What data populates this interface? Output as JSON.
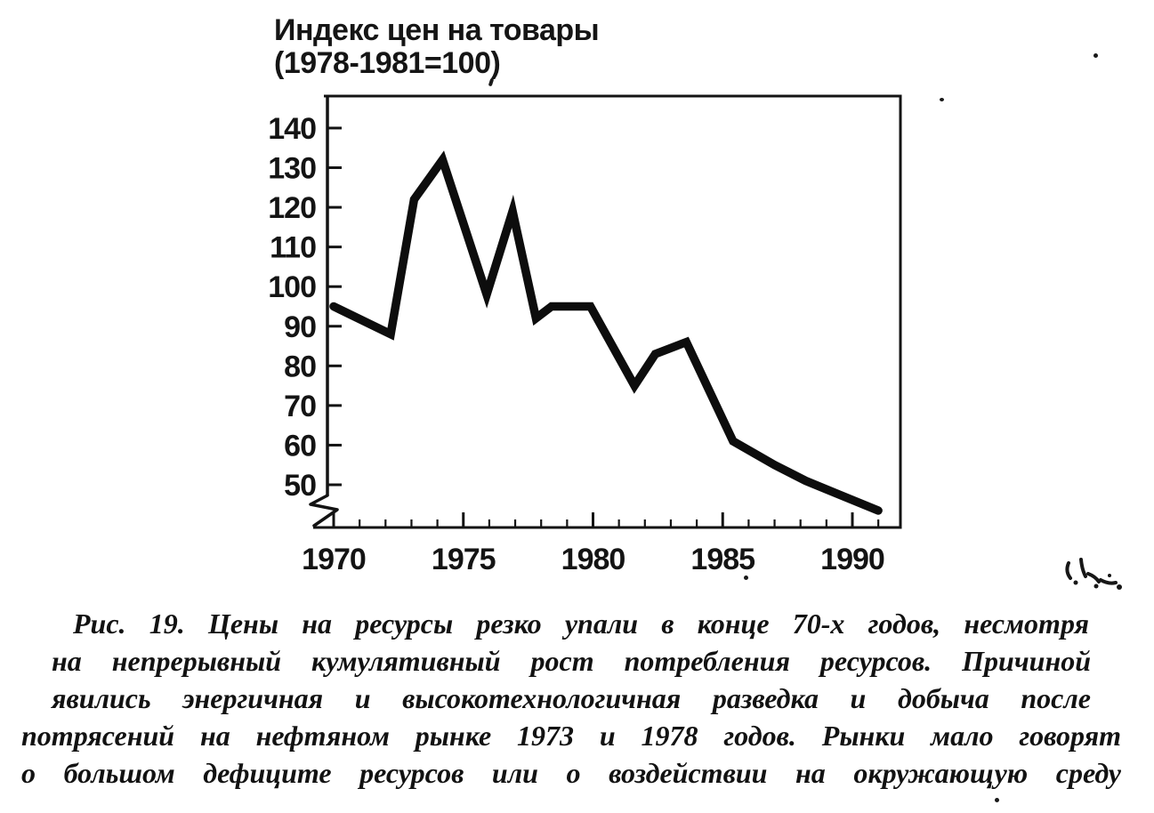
{
  "figure": {
    "title_line1": "Индекс цен на товары",
    "title_line2": "(1978-1981=100)"
  },
  "chart_data": {
    "type": "line",
    "title": "Индекс цен на товары (1978-1981=100)",
    "xlabel": "",
    "ylabel": "",
    "x_ticks": [
      1970,
      1975,
      1980,
      1985,
      1990
    ],
    "x_minor_ticks": {
      "from": 1970,
      "to": 1991,
      "step": 1
    },
    "x_range": [
      1969.7,
      1991.9
    ],
    "y_ticks": [
      50,
      60,
      70,
      80,
      90,
      100,
      110,
      120,
      130,
      140
    ],
    "y_range": [
      43,
      146
    ],
    "y_axis_break": true,
    "grid": false,
    "legend": false,
    "series": [
      {
        "name": "Индекс цен на товары (1978-1981=100)",
        "points": [
          [
            1970.0,
            95
          ],
          [
            1972.2,
            88
          ],
          [
            1973.1,
            122
          ],
          [
            1974.2,
            132
          ],
          [
            1975.9,
            98
          ],
          [
            1976.9,
            119
          ],
          [
            1977.8,
            92
          ],
          [
            1978.4,
            95
          ],
          [
            1979.9,
            95
          ],
          [
            1981.6,
            75
          ],
          [
            1982.4,
            83
          ],
          [
            1983.6,
            86
          ],
          [
            1985.4,
            61
          ],
          [
            1987.0,
            55
          ],
          [
            1988.2,
            51
          ],
          [
            1989.5,
            47.5
          ],
          [
            1991.0,
            43.5
          ]
        ]
      }
    ]
  },
  "caption": {
    "lines": [
      "Рис. 19. Цены на ресурсы резко упали в конце 70-х годов, несмотря",
      "на непрерывный кумулятивный рост потребления ресурсов. Причиной",
      "явились энергичная и высокотехнологичная разведка и добыча после",
      "потрясений на нефтяном рынке 1973 и 1978 годов. Рынки мало говорят",
      "о большом дефиците ресурсов или о воздействии на окружающую среду"
    ]
  },
  "colors": {
    "ink": "#131313",
    "paper": "#ffffff"
  }
}
